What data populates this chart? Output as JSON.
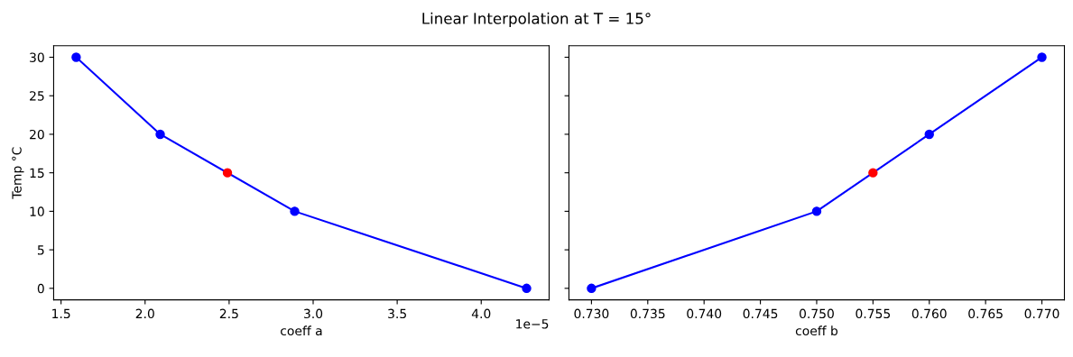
{
  "chart_data": [
    {
      "type": "line",
      "title": "Linear Interpolation at T = 15°",
      "xlabel": "coeff a",
      "ylabel": "Temp °C",
      "annotations": [
        "1e−5"
      ],
      "marker": "circle",
      "line_style": "solid",
      "legend": false,
      "series": [
        {
          "color": "#0000ff",
          "x": [
            1.59,
            2.09,
            2.89,
            4.27
          ],
          "values": [
            30,
            20,
            10,
            0
          ]
        },
        {
          "type": "scatter",
          "color": "#ff0000",
          "x": [
            2.49
          ],
          "values": [
            15
          ]
        }
      ],
      "xlim": [
        1.456,
        4.404
      ],
      "xticks": [
        1.5,
        {
          "value": 2,
          "label": "2.0"
        },
        2.5,
        {
          "value": 3,
          "label": "3.0"
        },
        3.5,
        {
          "value": 4,
          "label": "4.0"
        }
      ],
      "ylim": [
        -1.5,
        31.5
      ],
      "yticks": [
        0,
        5,
        10,
        15,
        20,
        25,
        30
      ]
    },
    {
      "type": "line",
      "xlabel": "coeff b",
      "marker": "circle",
      "line_style": "solid",
      "legend": false,
      "tick_labels": "x",
      "series": [
        {
          "color": "#0000ff",
          "x": [
            0.73,
            0.75,
            0.76,
            0.77
          ],
          "values": [
            0,
            10,
            20,
            30
          ]
        },
        {
          "type": "scatter",
          "color": "#ff0000",
          "x": [
            0.755
          ],
          "values": [
            15
          ]
        }
      ],
      "xlim": [
        0.728,
        0.772
      ],
      "xticks": [
        {
          "value": 0.73,
          "label": "0.730"
        },
        {
          "value": 0.735,
          "label": "0.735"
        },
        {
          "value": 0.74,
          "label": "0.740"
        },
        {
          "value": 0.745,
          "label": "0.745"
        },
        {
          "value": 0.75,
          "label": "0.750"
        },
        {
          "value": 0.755,
          "label": "0.755"
        },
        {
          "value": 0.76,
          "label": "0.760"
        },
        {
          "value": 0.765,
          "label": "0.765"
        },
        {
          "value": 0.77,
          "label": "0.770"
        }
      ],
      "ylim": [
        -1.5,
        31.5
      ],
      "yticks": [
        0,
        5,
        10,
        15,
        20,
        25,
        30
      ]
    }
  ]
}
